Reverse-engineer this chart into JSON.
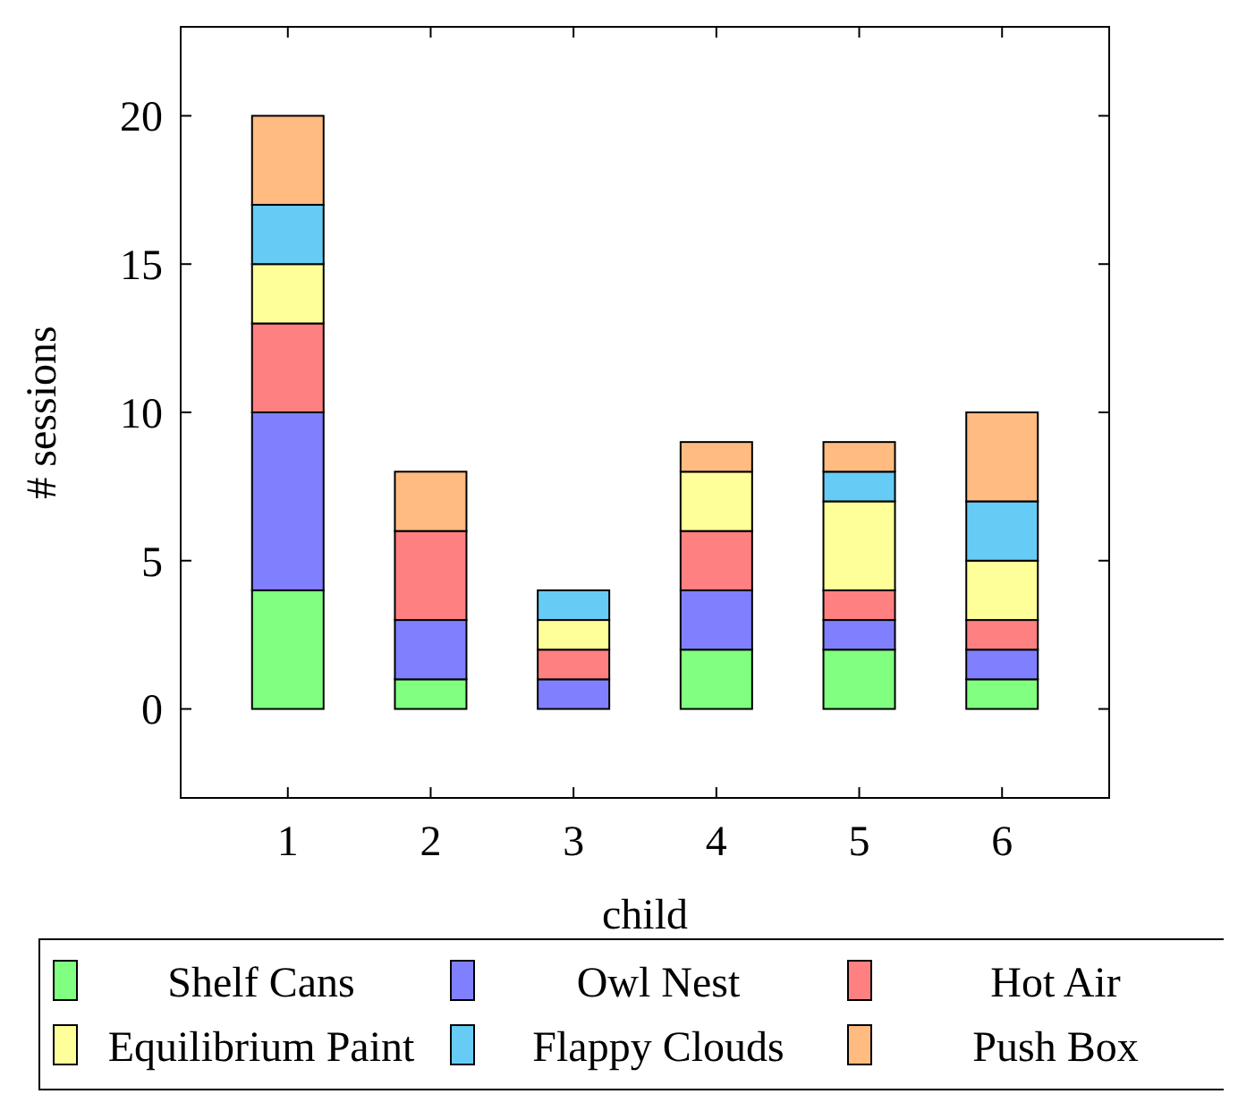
{
  "chart_data": {
    "type": "bar",
    "stacked": true,
    "xlabel": "child",
    "ylabel": "# sessions",
    "categories": [
      "1",
      "2",
      "3",
      "4",
      "5",
      "6"
    ],
    "ylim": [
      -3,
      23
    ],
    "yticks": [
      0,
      5,
      10,
      15,
      20
    ],
    "grid": false,
    "legend": "bottom",
    "series": [
      {
        "name": "Shelf Cans",
        "color": "#80ff80",
        "values": [
          4,
          1,
          0,
          2,
          2,
          1
        ]
      },
      {
        "name": "Owl Nest",
        "color": "#8080ff",
        "values": [
          6,
          2,
          1,
          2,
          1,
          1
        ]
      },
      {
        "name": "Hot Air",
        "color": "#ff8080",
        "values": [
          3,
          3,
          1,
          2,
          1,
          1
        ]
      },
      {
        "name": "Equilibrium Paint",
        "color": "#ffff99",
        "values": [
          2,
          0,
          1,
          2,
          3,
          2
        ]
      },
      {
        "name": "Flappy Clouds",
        "color": "#66ccf5",
        "values": [
          2,
          0,
          1,
          0,
          1,
          2
        ]
      },
      {
        "name": "Push Box",
        "color": "#ffbb80",
        "values": [
          3,
          2,
          0,
          1,
          1,
          3
        ]
      }
    ]
  }
}
